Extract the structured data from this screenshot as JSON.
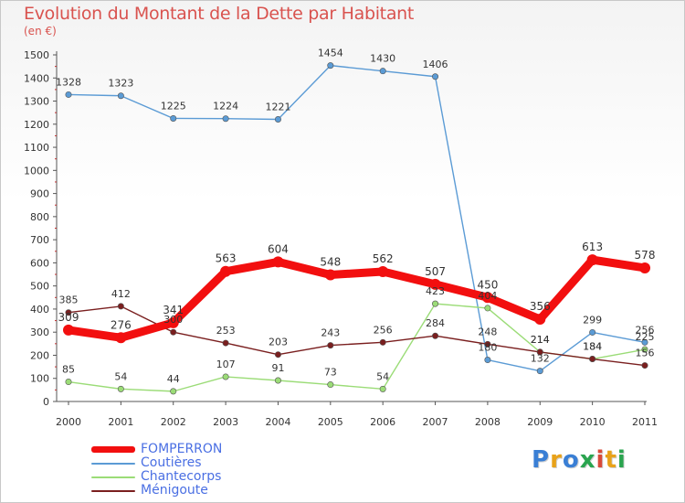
{
  "header": {
    "title": "Evolution du Montant de la Dette par Habitant",
    "subtitle": "(en €)"
  },
  "logo": {
    "text": "Proxiti",
    "letters": [
      {
        "ch": "P",
        "color": "#3a7fd5"
      },
      {
        "ch": "r",
        "color": "#e8a21a"
      },
      {
        "ch": "o",
        "color": "#3a7fd5"
      },
      {
        "ch": "x",
        "color": "#2aa44f"
      },
      {
        "ch": "i",
        "color": "#d94a3a"
      },
      {
        "ch": "t",
        "color": "#e8a21a"
      },
      {
        "ch": "i",
        "color": "#2aa44f"
      }
    ]
  },
  "chart_data": {
    "type": "line",
    "title": "Evolution du Montant de la Dette par Habitant",
    "subtitle": "(en €)",
    "x": [
      "2000",
      "2001",
      "2002",
      "2003",
      "2004",
      "2005",
      "2006",
      "2007",
      "2008",
      "2009",
      "2010",
      "2011"
    ],
    "ylim": [
      0,
      1500
    ],
    "yticks": [
      0,
      100,
      200,
      300,
      400,
      500,
      600,
      700,
      800,
      900,
      1000,
      1100,
      1200,
      1300,
      1400,
      1500
    ],
    "grid": false,
    "legend_position": "bottom-left",
    "series": [
      {
        "name": "FOMPERRON",
        "color": "#f20f0f",
        "values": [
          309,
          276,
          341,
          563,
          604,
          548,
          562,
          507,
          450,
          356,
          613,
          578
        ]
      },
      {
        "name": "Coutières",
        "color": "#5b9bd5",
        "values": [
          1328,
          1323,
          1225,
          1224,
          1221,
          1454,
          1430,
          1406,
          180,
          132,
          299,
          256
        ]
      },
      {
        "name": "Chantecorps",
        "color": "#9bdc77",
        "values": [
          85,
          54,
          44,
          107,
          91,
          73,
          54,
          423,
          404,
          214,
          184,
          225
        ]
      },
      {
        "name": "Ménigoute",
        "color": "#7a1f1f",
        "values": [
          385,
          412,
          300,
          253,
          203,
          243,
          256,
          284,
          248,
          214,
          184,
          156
        ]
      }
    ]
  }
}
